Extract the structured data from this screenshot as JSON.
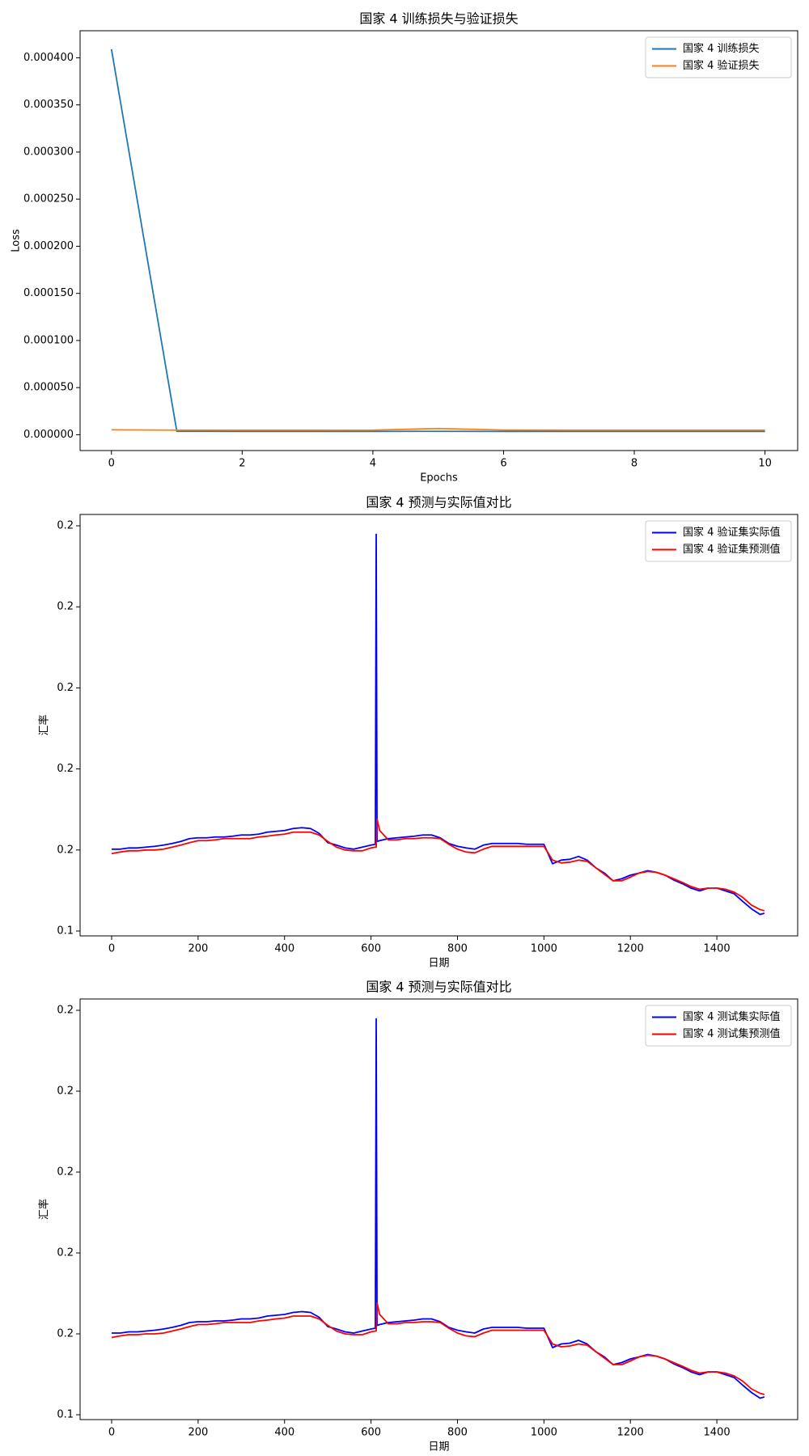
{
  "chart_data": [
    {
      "type": "line",
      "title": "国家 4 训练损失与验证损失",
      "x_label": "Epochs",
      "y_label": "Loss",
      "x": [
        0,
        1,
        2,
        3,
        4,
        5,
        6,
        7,
        8,
        9,
        10
      ],
      "series": [
        {
          "name": "国家 4 训练损失",
          "color": "#1f77b4",
          "values": [
            0.000409,
            3.6e-06,
            3.5e-06,
            3.5e-06,
            3.5e-06,
            3.6e-06,
            3.5e-06,
            3.5e-06,
            3.5e-06,
            3.5e-06,
            3.5e-06
          ]
        },
        {
          "name": "国家 4 验证损失",
          "color": "#ff7f0e",
          "values": [
            5.2e-06,
            4.9e-06,
            4.8e-06,
            4.8e-06,
            4.9e-06,
            6.6e-06,
            5e-06,
            4.9e-06,
            4.9e-06,
            4.9e-06,
            4.9e-06
          ]
        }
      ],
      "xlim": [
        -0.48,
        10.5
      ],
      "ylim": [
        -1.68e-05,
        0.0004287
      ],
      "xticks": [
        0,
        2,
        4,
        6,
        8,
        10
      ],
      "yticks": [
        {
          "value": 0,
          "label": "0.000000"
        },
        {
          "value": 5e-05,
          "label": "0.000050"
        },
        {
          "value": 0.0001,
          "label": "0.000100"
        },
        {
          "value": 0.00015,
          "label": "0.000150"
        },
        {
          "value": 0.0002,
          "label": "0.000200"
        },
        {
          "value": 0.00025,
          "label": "0.000250"
        },
        {
          "value": 0.0003,
          "label": "0.000300"
        },
        {
          "value": 0.00035,
          "label": "0.000350"
        },
        {
          "value": 0.0004,
          "label": "0.000400"
        }
      ],
      "grid": false,
      "legend": "upper right"
    },
    {
      "type": "line",
      "title": "国家 4 预测与实际值对比",
      "x_label": "日期",
      "y_label": "汇率",
      "x": [
        0,
        20,
        40,
        60,
        80,
        100,
        120,
        140,
        160,
        180,
        200,
        220,
        240,
        260,
        280,
        300,
        320,
        340,
        360,
        380,
        400,
        420,
        440,
        460,
        480,
        500,
        520,
        540,
        560,
        580,
        600,
        610,
        612,
        614,
        620,
        640,
        660,
        680,
        700,
        720,
        740,
        760,
        780,
        800,
        820,
        840,
        860,
        880,
        900,
        920,
        940,
        960,
        980,
        1000,
        1020,
        1040,
        1060,
        1080,
        1100,
        1120,
        1140,
        1160,
        1180,
        1200,
        1220,
        1240,
        1260,
        1280,
        1300,
        1320,
        1340,
        1360,
        1380,
        1400,
        1420,
        1440,
        1460,
        1480,
        1500,
        1510
      ],
      "series": [
        {
          "name": "国家 4 验证集实际值",
          "color": "blue",
          "values": [
            0.1602,
            0.1602,
            0.1605,
            0.1605,
            0.1607,
            0.1609,
            0.1612,
            0.1616,
            0.1621,
            0.1628,
            0.163,
            0.163,
            0.1632,
            0.1632,
            0.1634,
            0.1637,
            0.1637,
            0.1639,
            0.1644,
            0.1646,
            0.1648,
            0.1653,
            0.1655,
            0.1653,
            0.1641,
            0.1618,
            0.1612,
            0.1605,
            0.1602,
            0.1607,
            0.1612,
            0.1614,
            0.2379,
            0.1621,
            0.1623,
            0.1628,
            0.163,
            0.1632,
            0.1634,
            0.1637,
            0.1637,
            0.163,
            0.1616,
            0.1609,
            0.1605,
            0.1602,
            0.1612,
            0.1616,
            0.1616,
            0.1616,
            0.1616,
            0.1614,
            0.1614,
            0.1614,
            0.1566,
            0.1575,
            0.1577,
            0.1584,
            0.1575,
            0.1556,
            0.1543,
            0.1524,
            0.1529,
            0.1538,
            0.1543,
            0.1549,
            0.1545,
            0.1538,
            0.1526,
            0.1517,
            0.1506,
            0.1499,
            0.1506,
            0.1506,
            0.1499,
            0.1492,
            0.1473,
            0.1455,
            0.1441,
            0.1444
          ]
        },
        {
          "name": "国家 4 验证集预测值",
          "color": "red",
          "values": [
            0.1591,
            0.1595,
            0.1598,
            0.1598,
            0.16,
            0.16,
            0.1602,
            0.1607,
            0.1612,
            0.1618,
            0.1623,
            0.1623,
            0.1625,
            0.1628,
            0.1628,
            0.1628,
            0.1628,
            0.1632,
            0.1634,
            0.1637,
            0.1639,
            0.1644,
            0.1644,
            0.1644,
            0.1637,
            0.1621,
            0.1607,
            0.16,
            0.1598,
            0.1598,
            0.1605,
            0.1607,
            0.1607,
            0.1676,
            0.1648,
            0.1625,
            0.1625,
            0.1628,
            0.1628,
            0.163,
            0.163,
            0.1628,
            0.1614,
            0.1602,
            0.1595,
            0.1593,
            0.1602,
            0.1609,
            0.1609,
            0.1609,
            0.1609,
            0.1609,
            0.1609,
            0.1609,
            0.1575,
            0.1568,
            0.157,
            0.1575,
            0.1572,
            0.1556,
            0.154,
            0.1524,
            0.1524,
            0.1533,
            0.1543,
            0.1547,
            0.1545,
            0.1538,
            0.1529,
            0.152,
            0.151,
            0.1503,
            0.1506,
            0.1506,
            0.1503,
            0.1496,
            0.1483,
            0.1464,
            0.1453,
            0.145
          ]
        }
      ],
      "xlim": [
        -73,
        1587
      ],
      "ylim": [
        0.1388,
        0.2428
      ],
      "xticks": [
        0,
        200,
        400,
        600,
        800,
        1000,
        1200,
        1400
      ],
      "yticks": [
        {
          "value": 0.14,
          "label": "0.1"
        },
        {
          "value": 0.16,
          "label": "0.2"
        },
        {
          "value": 0.18,
          "label": "0.2"
        },
        {
          "value": 0.2,
          "label": "0.2"
        },
        {
          "value": 0.22,
          "label": "0.2"
        },
        {
          "value": 0.24,
          "label": "0.2"
        }
      ],
      "grid": false,
      "legend": "upper right"
    },
    {
      "type": "line",
      "title": "国家 4 预测与实际值对比",
      "x_label": "日期",
      "y_label": "汇率",
      "x": [
        0,
        20,
        40,
        60,
        80,
        100,
        120,
        140,
        160,
        180,
        200,
        220,
        240,
        260,
        280,
        300,
        320,
        340,
        360,
        380,
        400,
        420,
        440,
        460,
        480,
        500,
        520,
        540,
        560,
        580,
        600,
        610,
        612,
        614,
        620,
        640,
        660,
        680,
        700,
        720,
        740,
        760,
        780,
        800,
        820,
        840,
        860,
        880,
        900,
        920,
        940,
        960,
        980,
        1000,
        1020,
        1040,
        1060,
        1080,
        1100,
        1120,
        1140,
        1160,
        1180,
        1200,
        1220,
        1240,
        1260,
        1280,
        1300,
        1320,
        1340,
        1360,
        1380,
        1400,
        1420,
        1440,
        1460,
        1480,
        1500,
        1510
      ],
      "series": [
        {
          "name": "国家 4 测试集实际值",
          "color": "blue",
          "values": [
            0.1602,
            0.1602,
            0.1605,
            0.1605,
            0.1607,
            0.1609,
            0.1612,
            0.1616,
            0.1621,
            0.1628,
            0.163,
            0.163,
            0.1632,
            0.1632,
            0.1634,
            0.1637,
            0.1637,
            0.1639,
            0.1644,
            0.1646,
            0.1648,
            0.1653,
            0.1655,
            0.1653,
            0.1641,
            0.1618,
            0.1612,
            0.1605,
            0.1602,
            0.1607,
            0.1612,
            0.1614,
            0.2379,
            0.1621,
            0.1623,
            0.1628,
            0.163,
            0.1632,
            0.1634,
            0.1637,
            0.1637,
            0.163,
            0.1616,
            0.1609,
            0.1605,
            0.1602,
            0.1612,
            0.1616,
            0.1616,
            0.1616,
            0.1616,
            0.1614,
            0.1614,
            0.1614,
            0.1566,
            0.1575,
            0.1577,
            0.1584,
            0.1575,
            0.1556,
            0.1543,
            0.1524,
            0.1529,
            0.1538,
            0.1543,
            0.1549,
            0.1545,
            0.1538,
            0.1526,
            0.1517,
            0.1506,
            0.1499,
            0.1506,
            0.1506,
            0.1499,
            0.1492,
            0.1473,
            0.1455,
            0.1441,
            0.1444
          ]
        },
        {
          "name": "国家 4 测试集预测值",
          "color": "red",
          "values": [
            0.1591,
            0.1595,
            0.1598,
            0.1598,
            0.16,
            0.16,
            0.1602,
            0.1607,
            0.1612,
            0.1618,
            0.1623,
            0.1623,
            0.1625,
            0.1628,
            0.1628,
            0.1628,
            0.1628,
            0.1632,
            0.1634,
            0.1637,
            0.1639,
            0.1644,
            0.1644,
            0.1644,
            0.1637,
            0.1621,
            0.1607,
            0.16,
            0.1598,
            0.1598,
            0.1605,
            0.1607,
            0.1607,
            0.1676,
            0.1648,
            0.1625,
            0.1625,
            0.1628,
            0.1628,
            0.163,
            0.163,
            0.1628,
            0.1614,
            0.1602,
            0.1595,
            0.1593,
            0.1602,
            0.1609,
            0.1609,
            0.1609,
            0.1609,
            0.1609,
            0.1609,
            0.1609,
            0.1575,
            0.1568,
            0.157,
            0.1575,
            0.1572,
            0.1556,
            0.154,
            0.1524,
            0.1524,
            0.1533,
            0.1543,
            0.1547,
            0.1545,
            0.1538,
            0.1529,
            0.152,
            0.151,
            0.1503,
            0.1506,
            0.1506,
            0.1503,
            0.1496,
            0.1483,
            0.1464,
            0.1453,
            0.145
          ]
        }
      ],
      "xlim": [
        -73,
        1587
      ],
      "ylim": [
        0.1388,
        0.2428
      ],
      "xticks": [
        0,
        200,
        400,
        600,
        800,
        1000,
        1200,
        1400
      ],
      "yticks": [
        {
          "value": 0.14,
          "label": "0.1"
        },
        {
          "value": 0.16,
          "label": "0.2"
        },
        {
          "value": 0.18,
          "label": "0.2"
        },
        {
          "value": 0.2,
          "label": "0.2"
        },
        {
          "value": 0.22,
          "label": "0.2"
        },
        {
          "value": 0.24,
          "label": "0.2"
        }
      ],
      "grid": false,
      "legend": "upper right"
    }
  ]
}
